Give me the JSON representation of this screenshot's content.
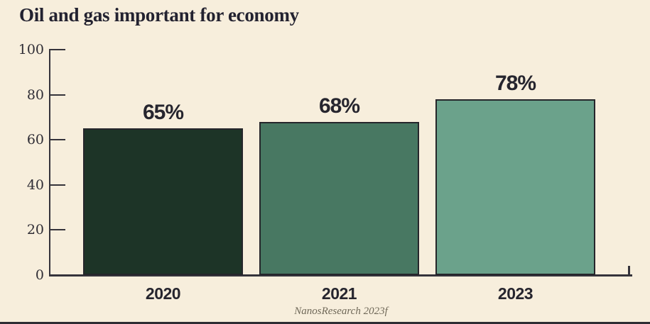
{
  "title": "Oil and gas important for economy",
  "source": "NanosResearch 2023f",
  "colors": {
    "background": "#f7eedc",
    "axis": "#35333b",
    "title_text": "#232230",
    "label_text": "#26252e",
    "tick_text": "#2f2d35",
    "source_text": "#6f6858",
    "bottom_rule": "#2e2c33",
    "bar_border": "#26262b",
    "bar_fills": [
      "#1d3427",
      "#487862",
      "#6ba28b"
    ]
  },
  "chart_data": {
    "type": "bar",
    "title": "Oil and gas important for economy",
    "categories": [
      "2020",
      "2021",
      "2023"
    ],
    "values": [
      65,
      68,
      78
    ],
    "value_labels": [
      "65%",
      "68%",
      "78%"
    ],
    "xlabel": "",
    "ylabel": "",
    "ylim": [
      0,
      100
    ],
    "yticks": [
      0,
      20,
      40,
      60,
      80,
      100
    ],
    "grid": false,
    "legend": false,
    "source": "NanosResearch 2023f"
  }
}
